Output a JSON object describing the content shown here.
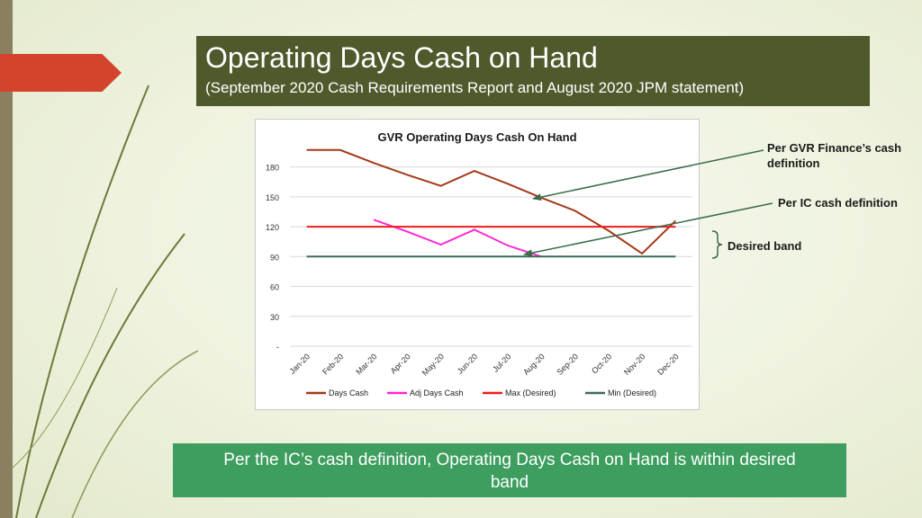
{
  "slide": {
    "title": "Operating Days Cash on Hand",
    "subtitle": "(September 2020 Cash Requirements Report and August 2020 JPM statement)",
    "footer": "Per the IC’s cash definition, Operating Days Cash on Hand is within desired band"
  },
  "annotations": {
    "gvr_def": "Per GVR Finance’s cash definition",
    "ic_def": "Per IC cash definition",
    "band": "Desired band"
  },
  "colors": {
    "title_bg": "#4f5a2c",
    "footer_bg": "#3d9e5f",
    "arrow": "#d4442c",
    "annotation_line": "#3a6b4a"
  },
  "chart_data": {
    "type": "line",
    "title": "GVR Operating Days Cash On Hand",
    "categories": [
      "Jan-20",
      "Feb-20",
      "Mar-20",
      "Apr-20",
      "May-20",
      "Jun-20",
      "Jul-20",
      "Aug-20",
      "Sep-20",
      "Oct-20",
      "Nov-20",
      "Dec-20"
    ],
    "ylim": [
      0,
      195
    ],
    "yticks": [
      0,
      30,
      60,
      90,
      120,
      150,
      180
    ],
    "ytick_labels": [
      "-",
      "30",
      "60",
      "90",
      "120",
      "150",
      "180"
    ],
    "grid": true,
    "legend_position": "bottom",
    "series": [
      {
        "name": "Days Cash",
        "color": "#a33a1a",
        "values": [
          197,
          197,
          184,
          172,
          161,
          176,
          163,
          149,
          136,
          116,
          93,
          126
        ]
      },
      {
        "name": "Adj Days Cash",
        "color": "#ff2ad4",
        "values": [
          null,
          null,
          127,
          115,
          102,
          117,
          101,
          90,
          null,
          null,
          null,
          null
        ]
      },
      {
        "name": "Max (Desired)",
        "color": "#ee1c1c",
        "values": [
          120,
          120,
          120,
          120,
          120,
          120,
          120,
          120,
          120,
          120,
          120,
          120
        ]
      },
      {
        "name": "Min (Desired)",
        "color": "#3f6b57",
        "values": [
          90,
          90,
          90,
          90,
          90,
          90,
          90,
          90,
          90,
          90,
          90,
          90
        ]
      }
    ]
  }
}
